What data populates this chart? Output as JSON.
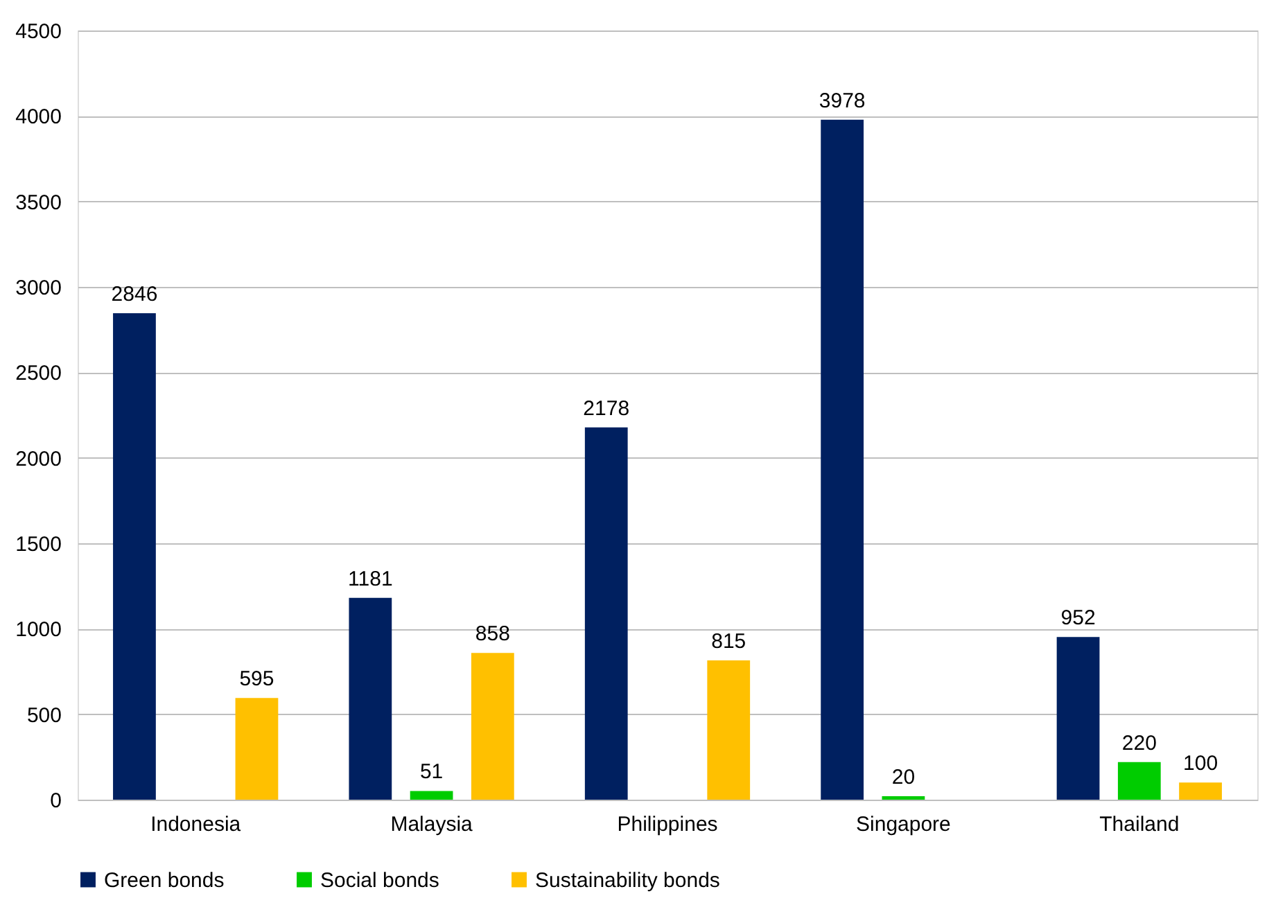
{
  "chart_data": {
    "type": "bar",
    "categories": [
      "Indonesia",
      "Malaysia",
      "Philippines",
      "Singapore",
      "Thailand"
    ],
    "series": [
      {
        "name": "Green bonds",
        "color": "#002060",
        "values": [
          2846,
          1181,
          2178,
          3978,
          952
        ]
      },
      {
        "name": "Social bonds",
        "color": "#00cc00",
        "values": [
          null,
          51,
          null,
          20,
          220
        ]
      },
      {
        "name": "Sustainability bonds",
        "color": "#ffc000",
        "values": [
          595,
          858,
          815,
          null,
          100
        ]
      }
    ],
    "ylim": [
      0,
      4500
    ],
    "yticks": [
      0,
      500,
      1000,
      1500,
      2000,
      2500,
      3000,
      3500,
      4000,
      4500
    ],
    "grid": "y",
    "legend": "bottom",
    "data_labels": true
  }
}
